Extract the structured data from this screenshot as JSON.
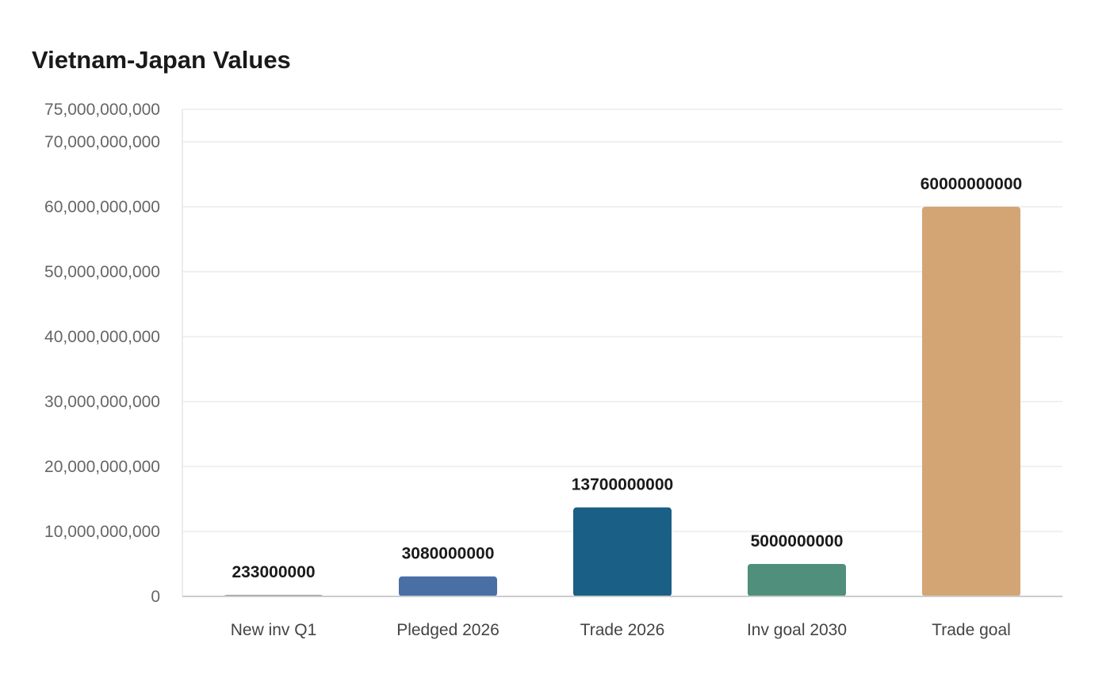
{
  "chart_data": {
    "type": "bar",
    "title": "Vietnam-Japan Values",
    "xlabel": "",
    "ylabel": "",
    "categories": [
      "New inv Q1",
      "Pledged 2026",
      "Trade 2026",
      "Inv goal 2030",
      "Trade goal"
    ],
    "values": [
      233000000,
      3080000000,
      13700000000,
      5000000000,
      60000000000
    ],
    "value_labels": [
      "233000000",
      "3080000000",
      "13700000000",
      "5000000000",
      "60000000000"
    ],
    "colors": [
      "#999999",
      "#4a6fa5",
      "#1a5f86",
      "#4f8f7c",
      "#d4a574"
    ],
    "ylim": [
      0,
      75000000000
    ],
    "yticks": [
      0,
      10000000000,
      20000000000,
      30000000000,
      40000000000,
      50000000000,
      60000000000,
      70000000000,
      75000000000
    ],
    "ytick_labels": [
      "0",
      "10,000,000,000",
      "20,000,000,000",
      "30,000,000,000",
      "40,000,000,000",
      "50,000,000,000",
      "60,000,000,000",
      "70,000,000,000",
      "75,000,000,000"
    ],
    "grid": true,
    "legend": "none"
  }
}
